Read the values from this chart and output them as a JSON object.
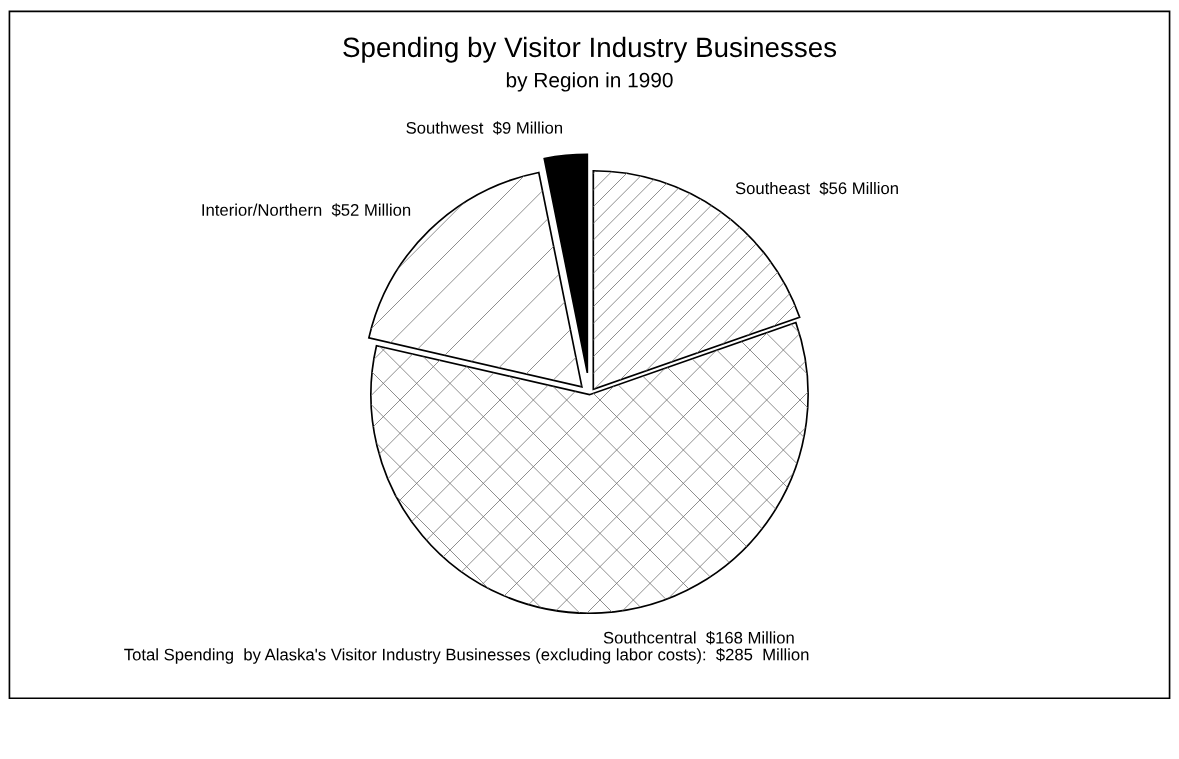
{
  "chart_data": {
    "type": "pie",
    "title": "Spending by Visitor Industry Businesses",
    "subtitle": "by Region in 1990",
    "categories": [
      "Southeast",
      "Southcentral",
      "Interior/Northern",
      "Southwest"
    ],
    "values": [
      56,
      168,
      52,
      9
    ],
    "value_labels": [
      "$56 Million",
      "$168 Million",
      "$52 Million",
      "$9 Million"
    ],
    "colors": [
      "#ffffff",
      "#ffffff",
      "#ffffff",
      "#000000"
    ],
    "annotations": [
      "Total Spending  by Alaska's Visitor Industry Businesses (excluding labor costs):  $285  Million"
    ]
  }
}
